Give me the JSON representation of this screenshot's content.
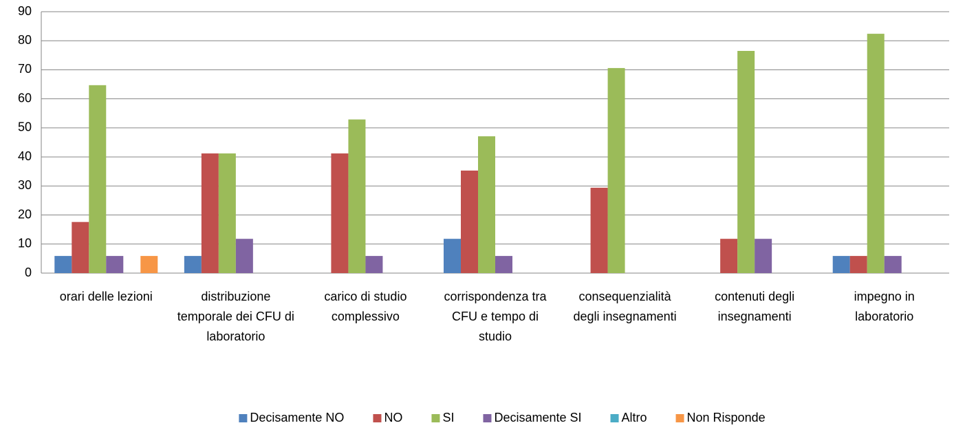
{
  "chart_data": {
    "type": "bar",
    "categories": [
      "orari delle lezioni",
      "distribuzione temporale dei CFU di laboratorio",
      "carico di studio complessivo",
      "corrispondenza tra CFU e tempo di studio",
      "consequenzialità degli insegnamenti",
      "contenuti degli insegnamenti",
      "impegno in laboratorio"
    ],
    "series": [
      {
        "name": "Decisamente NO",
        "color": "#4f81bd",
        "values": [
          5.9,
          5.9,
          0,
          11.8,
          0,
          0,
          5.9
        ]
      },
      {
        "name": "NO",
        "color": "#c0504d",
        "values": [
          17.6,
          41.2,
          41.2,
          35.3,
          29.4,
          11.8,
          5.9
        ]
      },
      {
        "name": "SI",
        "color": "#9bbb59",
        "values": [
          64.7,
          41.2,
          52.9,
          47.1,
          70.6,
          76.5,
          82.4
        ]
      },
      {
        "name": "Decisamente SI",
        "color": "#8064a2",
        "values": [
          5.9,
          11.8,
          5.9,
          5.9,
          0,
          11.8,
          5.9
        ]
      },
      {
        "name": "Altro",
        "color": "#4bacc6",
        "values": [
          0,
          0,
          0,
          0,
          0,
          0,
          0
        ]
      },
      {
        "name": "Non Risponde",
        "color": "#f79646",
        "values": [
          5.9,
          0,
          0,
          0,
          0,
          0,
          0
        ]
      }
    ],
    "ylim": [
      0,
      90
    ],
    "yticks": [
      0,
      10,
      20,
      30,
      40,
      50,
      60,
      70,
      80,
      90
    ],
    "grid": true,
    "legend": "bottom"
  }
}
